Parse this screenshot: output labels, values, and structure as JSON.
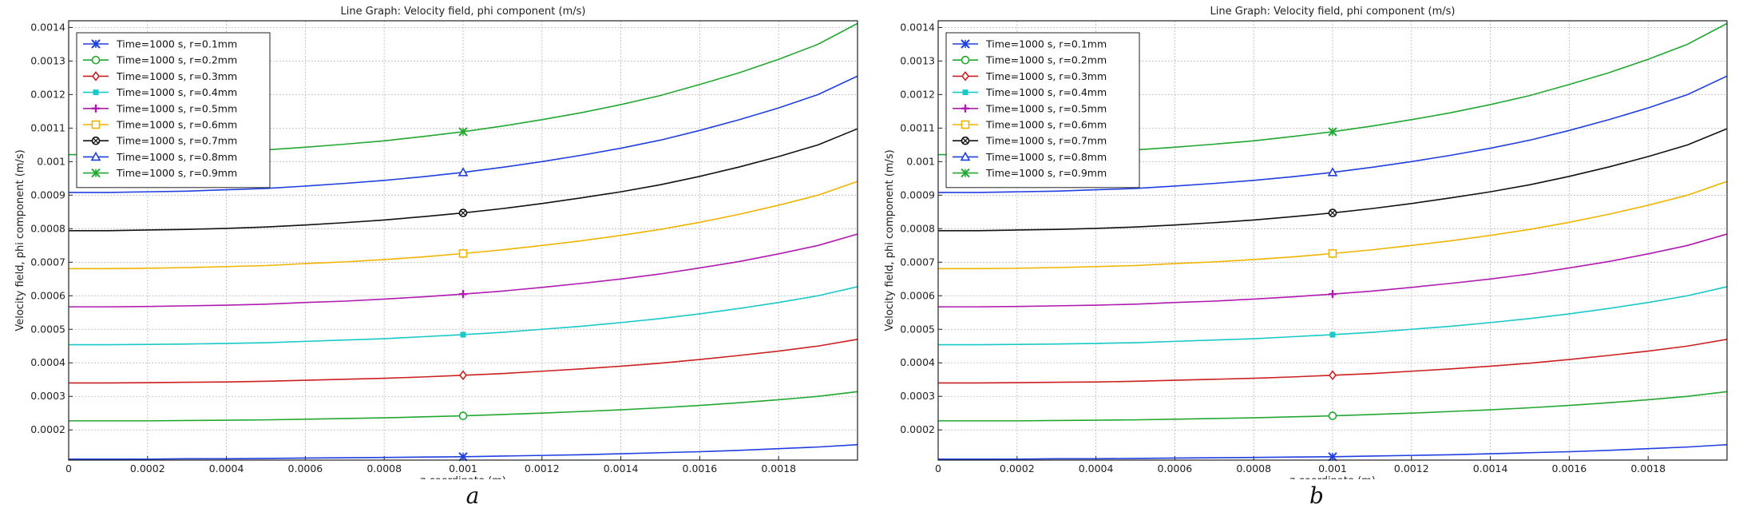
{
  "chart_data": [
    {
      "type": "line",
      "panel_label": "a",
      "title": "Line Graph: Velocity field, phi component (m/s)",
      "xlabel": "z-coordinate (m)",
      "ylabel": "Velocity field, phi component (m/s)",
      "xlim": [
        0,
        0.002
      ],
      "ylim": [
        0.00011,
        0.00142
      ],
      "x_ticks": [
        "0",
        "0.0002",
        "0.0004",
        "0.0006",
        "0.0008",
        "0.001",
        "0.0012",
        "0.0014",
        "0.0016",
        "0.0018"
      ],
      "y_ticks": [
        "0.0002",
        "0.0003",
        "0.0004",
        "0.0005",
        "0.0006",
        "0.0007",
        "0.0008",
        "0.0009",
        "0.001",
        "0.0011",
        "0.0012",
        "0.0013",
        "0.0014"
      ],
      "grid": true,
      "legend_position": "top-left",
      "x": [
        0,
        0.0001,
        0.0002,
        0.0003,
        0.0004,
        0.0005,
        0.0006,
        0.0007,
        0.0008,
        0.0009,
        0.001,
        0.0011,
        0.0012,
        0.0013,
        0.0014,
        0.0015,
        0.0016,
        0.0017,
        0.0018,
        0.0019,
        0.002
      ],
      "series": [
        {
          "name": "Time=1000 s, r=0.1mm",
          "color": "#1f3fe0",
          "marker": "x-star",
          "marker_x": 0.001,
          "values": [
            0.000113,
            0.000113,
            0.000113,
            0.000114,
            0.000114,
            0.000115,
            0.000116,
            0.000117,
            0.000118,
            0.000119,
            0.00012,
            0.000122,
            0.000124,
            0.000126,
            0.000129,
            0.000132,
            0.000135,
            0.000139,
            0.000144,
            0.000149,
            0.000156
          ]
        },
        {
          "name": "Time=1000 s, r=0.2mm",
          "color": "#22a832",
          "marker": "circle",
          "marker_x": 0.001,
          "values": [
            0.000227,
            0.000227,
            0.000227,
            0.000228,
            0.000229,
            0.00023,
            0.000232,
            0.000234,
            0.000236,
            0.000239,
            0.000242,
            0.000246,
            0.00025,
            0.000255,
            0.00026,
            0.000266,
            0.000273,
            0.000281,
            0.00029,
            0.0003,
            0.000314
          ]
        },
        {
          "name": "Time=1000 s, r=0.3mm",
          "color": "#cc1f1f",
          "marker": "diamond",
          "marker_x": 0.001,
          "values": [
            0.00034,
            0.00034,
            0.000341,
            0.000342,
            0.000343,
            0.000345,
            0.000348,
            0.000351,
            0.000354,
            0.000358,
            0.000363,
            0.000368,
            0.000375,
            0.000382,
            0.00039,
            0.000399,
            0.00041,
            0.000422,
            0.000435,
            0.00045,
            0.00047
          ]
        },
        {
          "name": "Time=1000 s, r=0.4mm",
          "color": "#19c8c8",
          "marker": "square-filled",
          "marker_x": 0.001,
          "values": [
            0.000454,
            0.000454,
            0.000455,
            0.000456,
            0.000458,
            0.00046,
            0.000464,
            0.000468,
            0.000472,
            0.000478,
            0.000484,
            0.000491,
            0.0005,
            0.000509,
            0.00052,
            0.000532,
            0.000546,
            0.000562,
            0.00058,
            0.0006,
            0.000627
          ]
        },
        {
          "name": "Time=1000 s, r=0.5mm",
          "color": "#b01ab0",
          "marker": "plus",
          "marker_x": 0.001,
          "values": [
            0.000567,
            0.000567,
            0.000568,
            0.00057,
            0.000572,
            0.000575,
            0.00058,
            0.000584,
            0.00059,
            0.000597,
            0.000605,
            0.000614,
            0.000625,
            0.000637,
            0.00065,
            0.000665,
            0.000683,
            0.000702,
            0.000725,
            0.00075,
            0.000784
          ]
        },
        {
          "name": "Time=1000 s, r=0.6mm",
          "color": "#f0b400",
          "marker": "square-open",
          "marker_x": 0.001,
          "values": [
            0.000681,
            0.000681,
            0.000682,
            0.000684,
            0.000687,
            0.00069,
            0.000696,
            0.000701,
            0.000708,
            0.000716,
            0.000726,
            0.000737,
            0.00075,
            0.000764,
            0.00078,
            0.000798,
            0.000819,
            0.000843,
            0.00087,
            0.0009,
            0.000941
          ]
        },
        {
          "name": "Time=1000 s, r=0.7mm",
          "color": "#111111",
          "marker": "circle-cross",
          "marker_x": 0.001,
          "values": [
            0.000794,
            0.000794,
            0.000796,
            0.000798,
            0.000801,
            0.000805,
            0.000811,
            0.000818,
            0.000826,
            0.000836,
            0.000847,
            0.00086,
            0.000875,
            0.000892,
            0.00091,
            0.000931,
            0.000956,
            0.000984,
            0.001015,
            0.00105,
            0.001098
          ]
        },
        {
          "name": "Time=1000 s, r=0.8mm",
          "color": "#1f3fe0",
          "marker": "triangle",
          "marker_x": 0.001,
          "values": [
            0.000908,
            0.000908,
            0.00091,
            0.000912,
            0.000916,
            0.00092,
            0.000927,
            0.000935,
            0.000944,
            0.000955,
            0.000968,
            0.000983,
            0.001,
            0.001019,
            0.00104,
            0.001064,
            0.001093,
            0.001125,
            0.00116,
            0.0012,
            0.001255
          ]
        },
        {
          "name": "Time=1000 s, r=0.9mm",
          "color": "#22a832",
          "marker": "x-star",
          "marker_x": 0.001,
          "values": [
            0.001021,
            0.001021,
            0.001023,
            0.001026,
            0.00103,
            0.001035,
            0.001043,
            0.001052,
            0.001062,
            0.001075,
            0.001089,
            0.001106,
            0.001125,
            0.001146,
            0.00117,
            0.001197,
            0.00123,
            0.001265,
            0.001305,
            0.00135,
            0.001412
          ]
        }
      ]
    },
    {
      "type": "line",
      "panel_label": "b",
      "title": "Line Graph: Velocity field, phi component (m/s)",
      "xlabel": "z-coordinate (m)",
      "ylabel": "Velocity field, phi component (m/s)",
      "xlim": [
        0,
        0.002
      ],
      "ylim": [
        0.00011,
        0.00142
      ],
      "x_ticks": [
        "0",
        "0.0002",
        "0.0004",
        "0.0006",
        "0.0008",
        "0.001",
        "0.0012",
        "0.0014",
        "0.0016",
        "0.0018"
      ],
      "y_ticks": [
        "0.0002",
        "0.0003",
        "0.0004",
        "0.0005",
        "0.0006",
        "0.0007",
        "0.0008",
        "0.0009",
        "0.001",
        "0.0011",
        "0.0012",
        "0.0013",
        "0.0014"
      ],
      "grid": true,
      "legend_position": "top-left",
      "x": [
        0,
        0.0001,
        0.0002,
        0.0003,
        0.0004,
        0.0005,
        0.0006,
        0.0007,
        0.0008,
        0.0009,
        0.001,
        0.0011,
        0.0012,
        0.0013,
        0.0014,
        0.0015,
        0.0016,
        0.0017,
        0.0018,
        0.0019,
        0.002
      ],
      "series": [
        {
          "name": "Time=1000 s, r=0.1mm",
          "color": "#1f3fe0",
          "marker": "x-star",
          "marker_x": 0.001,
          "values": [
            0.000113,
            0.000113,
            0.000113,
            0.000114,
            0.000114,
            0.000115,
            0.000116,
            0.000117,
            0.000118,
            0.000119,
            0.00012,
            0.000122,
            0.000124,
            0.000126,
            0.000129,
            0.000132,
            0.000135,
            0.000139,
            0.000144,
            0.000149,
            0.000156
          ]
        },
        {
          "name": "Time=1000 s, r=0.2mm",
          "color": "#22a832",
          "marker": "circle",
          "marker_x": 0.001,
          "values": [
            0.000227,
            0.000227,
            0.000227,
            0.000228,
            0.000229,
            0.00023,
            0.000232,
            0.000234,
            0.000236,
            0.000239,
            0.000242,
            0.000246,
            0.00025,
            0.000255,
            0.00026,
            0.000266,
            0.000273,
            0.000281,
            0.00029,
            0.0003,
            0.000314
          ]
        },
        {
          "name": "Time=1000 s, r=0.3mm",
          "color": "#cc1f1f",
          "marker": "diamond",
          "marker_x": 0.001,
          "values": [
            0.00034,
            0.00034,
            0.000341,
            0.000342,
            0.000343,
            0.000345,
            0.000348,
            0.000351,
            0.000354,
            0.000358,
            0.000363,
            0.000368,
            0.000375,
            0.000382,
            0.00039,
            0.000399,
            0.00041,
            0.000422,
            0.000435,
            0.00045,
            0.00047
          ]
        },
        {
          "name": "Time=1000 s, r=0.4mm",
          "color": "#19c8c8",
          "marker": "square-filled",
          "marker_x": 0.001,
          "values": [
            0.000454,
            0.000454,
            0.000455,
            0.000456,
            0.000458,
            0.00046,
            0.000464,
            0.000468,
            0.000472,
            0.000478,
            0.000484,
            0.000491,
            0.0005,
            0.000509,
            0.00052,
            0.000532,
            0.000546,
            0.000562,
            0.00058,
            0.0006,
            0.000627
          ]
        },
        {
          "name": "Time=1000 s, r=0.5mm",
          "color": "#b01ab0",
          "marker": "plus",
          "marker_x": 0.001,
          "values": [
            0.000567,
            0.000567,
            0.000568,
            0.00057,
            0.000572,
            0.000575,
            0.00058,
            0.000584,
            0.00059,
            0.000597,
            0.000605,
            0.000614,
            0.000625,
            0.000637,
            0.00065,
            0.000665,
            0.000683,
            0.000702,
            0.000725,
            0.00075,
            0.000784
          ]
        },
        {
          "name": "Time=1000 s, r=0.6mm",
          "color": "#f0b400",
          "marker": "square-open",
          "marker_x": 0.001,
          "values": [
            0.000681,
            0.000681,
            0.000682,
            0.000684,
            0.000687,
            0.00069,
            0.000696,
            0.000701,
            0.000708,
            0.000716,
            0.000726,
            0.000737,
            0.00075,
            0.000764,
            0.00078,
            0.000798,
            0.000819,
            0.000843,
            0.00087,
            0.0009,
            0.000941
          ]
        },
        {
          "name": "Time=1000 s, r=0.7mm",
          "color": "#111111",
          "marker": "circle-cross",
          "marker_x": 0.001,
          "values": [
            0.000794,
            0.000794,
            0.000796,
            0.000798,
            0.000801,
            0.000805,
            0.000811,
            0.000818,
            0.000826,
            0.000836,
            0.000847,
            0.00086,
            0.000875,
            0.000892,
            0.00091,
            0.000931,
            0.000956,
            0.000984,
            0.001015,
            0.00105,
            0.001098
          ]
        },
        {
          "name": "Time=1000 s, r=0.8mm",
          "color": "#1f3fe0",
          "marker": "triangle",
          "marker_x": 0.001,
          "values": [
            0.000908,
            0.000908,
            0.00091,
            0.000912,
            0.000916,
            0.00092,
            0.000927,
            0.000935,
            0.000944,
            0.000955,
            0.000968,
            0.000983,
            0.001,
            0.001019,
            0.00104,
            0.001064,
            0.001093,
            0.001125,
            0.00116,
            0.0012,
            0.001255
          ]
        },
        {
          "name": "Time=1000 s, r=0.9mm",
          "color": "#22a832",
          "marker": "x-star",
          "marker_x": 0.001,
          "values": [
            0.001021,
            0.001021,
            0.001023,
            0.001026,
            0.00103,
            0.001035,
            0.001043,
            0.001052,
            0.001062,
            0.001075,
            0.001089,
            0.001106,
            0.001125,
            0.001146,
            0.00117,
            0.001197,
            0.00123,
            0.001265,
            0.001305,
            0.00135,
            0.001412
          ]
        }
      ]
    }
  ]
}
